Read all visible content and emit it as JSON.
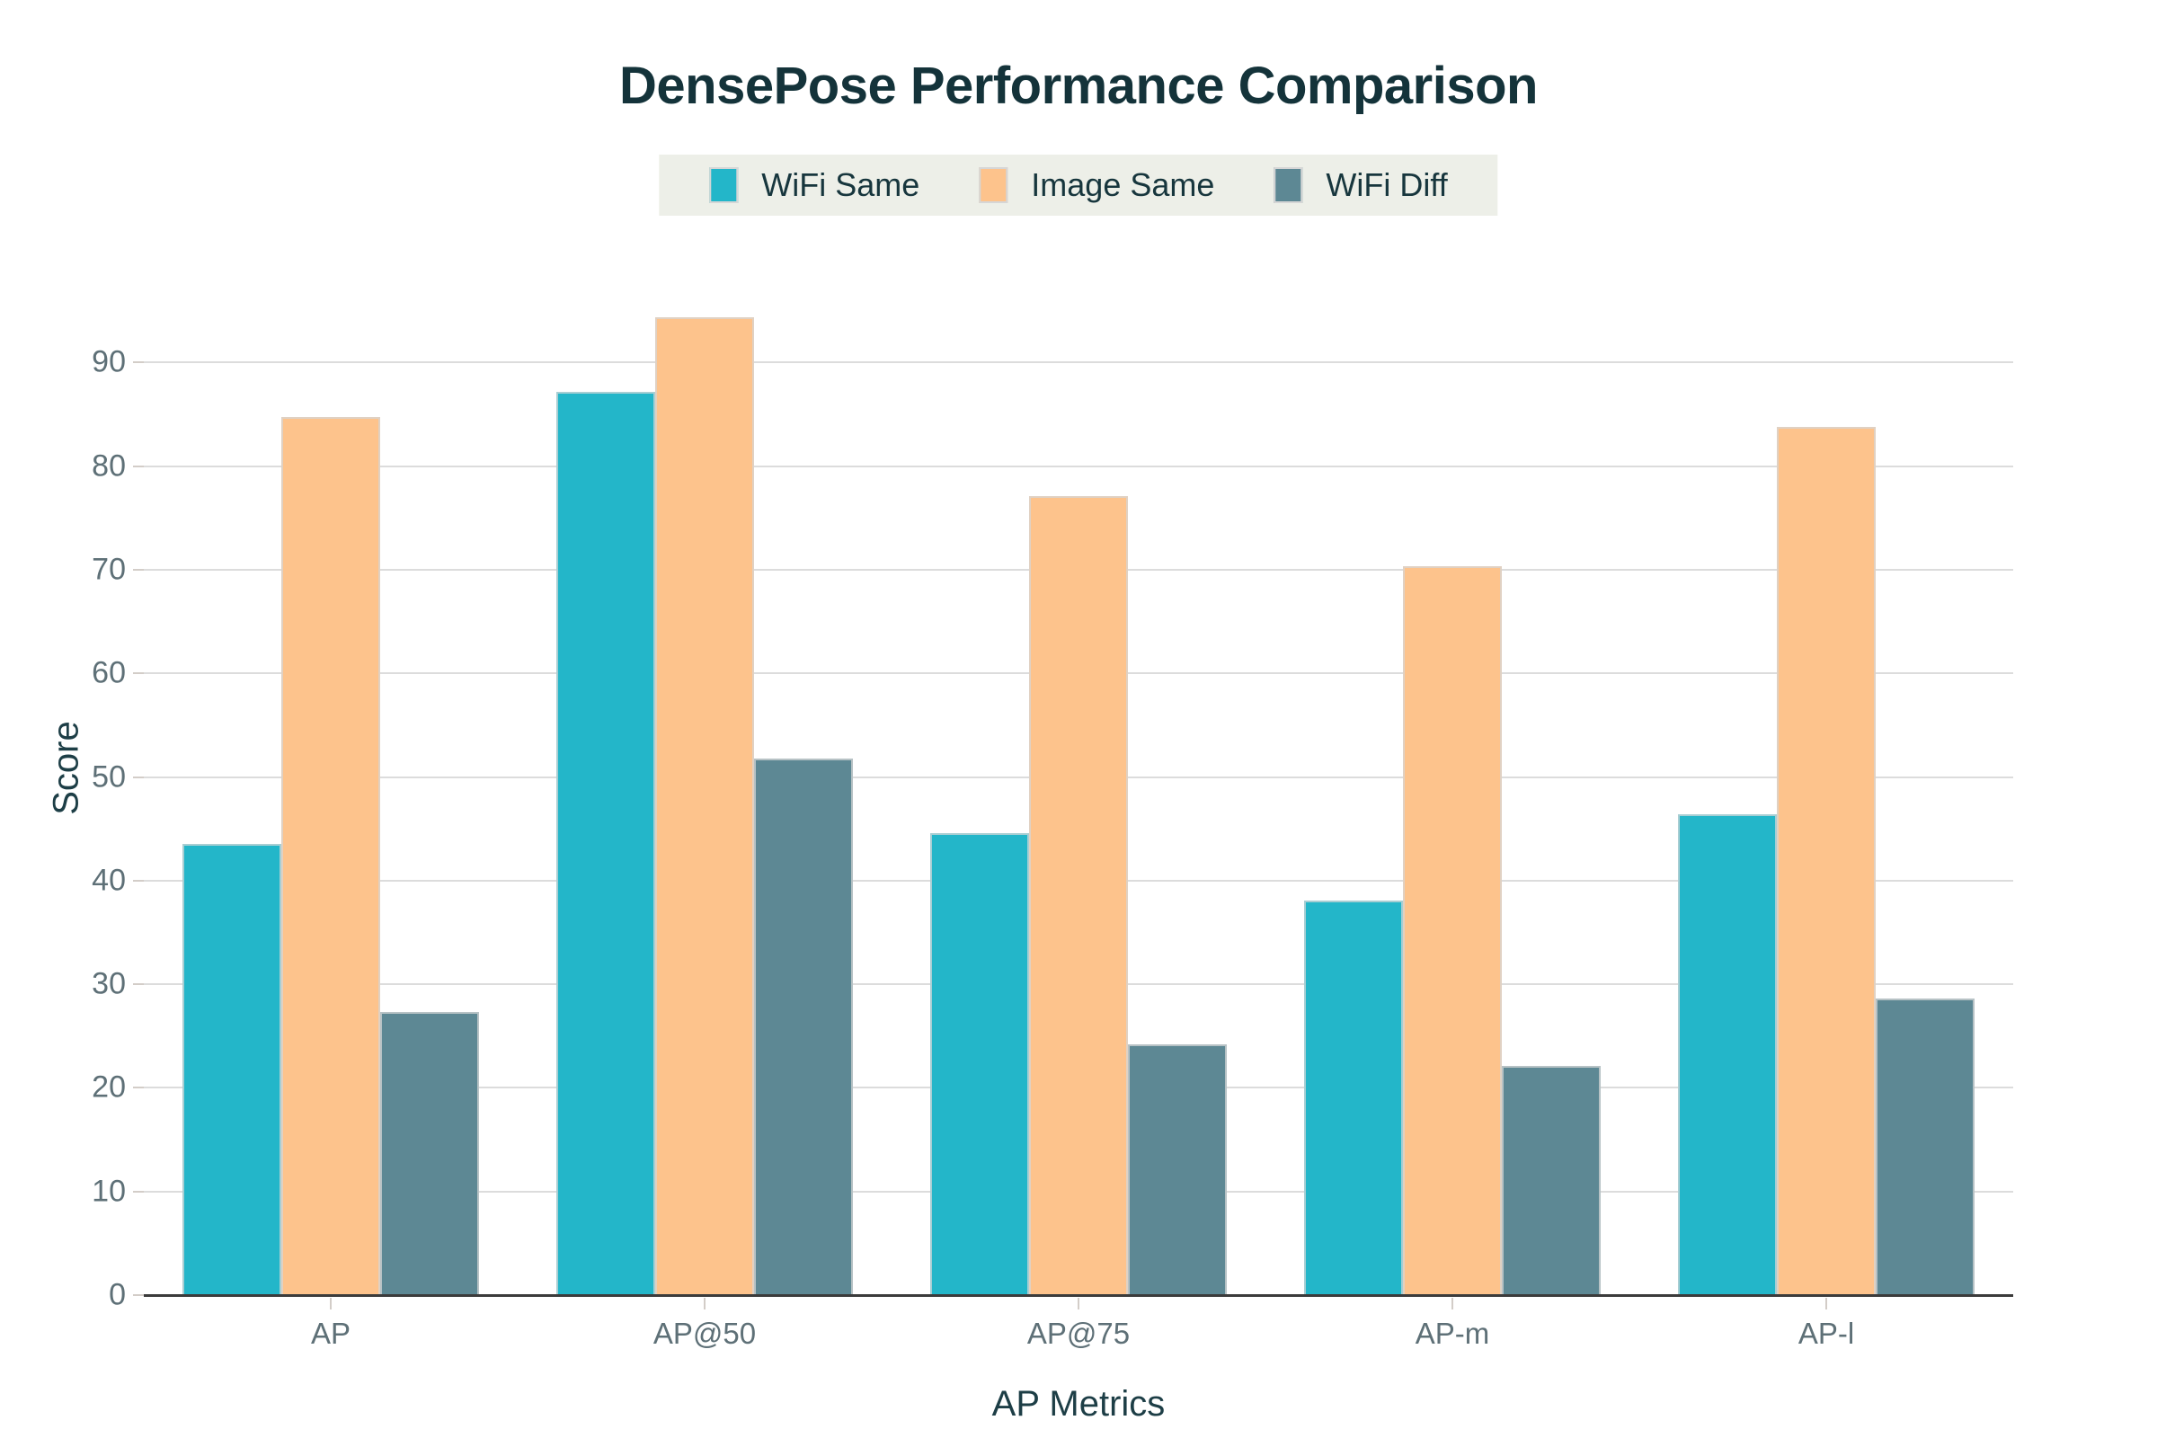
{
  "chart_data": {
    "type": "bar",
    "title": "DensePose Performance Comparison",
    "xlabel": "AP Metrics",
    "ylabel": "Score",
    "categories": [
      "AP",
      "AP@50",
      "AP@75",
      "AP-m",
      "AP-l"
    ],
    "series": [
      {
        "name": "WiFi Same",
        "color": "#23b6c9",
        "values": [
          43.5,
          87.2,
          44.6,
          38.1,
          46.4
        ]
      },
      {
        "name": "Image Same",
        "color": "#fdc38c",
        "values": [
          84.7,
          94.4,
          77.1,
          70.3,
          83.8
        ]
      },
      {
        "name": "WiFi Diff",
        "color": "#5d8894",
        "values": [
          27.3,
          51.8,
          24.2,
          22.1,
          28.6
        ]
      }
    ],
    "ylim": [
      0,
      102
    ],
    "yticks": [
      0,
      10,
      20,
      30,
      40,
      50,
      60,
      70,
      80,
      90
    ],
    "grid": true,
    "legend_position": "top-center"
  },
  "style_colors": {
    "title_text": "#14333a",
    "axis_title_text": "#1d3e46",
    "tick_text": "#5e7077",
    "gridline": "#dcdcdc",
    "axis_line": "#3b3b3b",
    "legend_background": "#edefe8",
    "background": "#ffffff"
  }
}
